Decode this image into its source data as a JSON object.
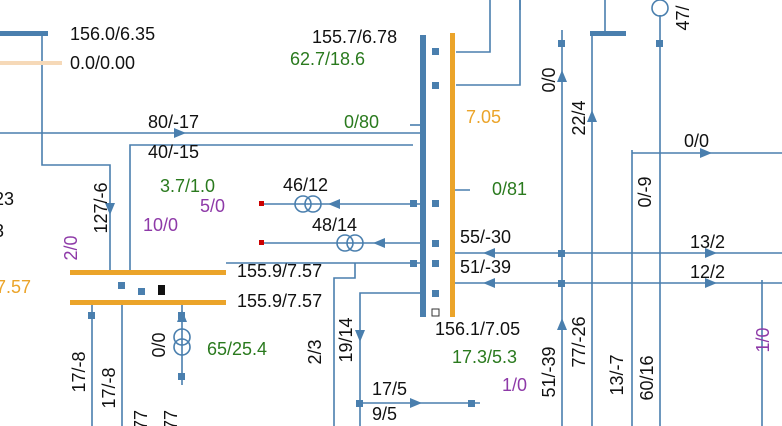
{
  "labels": [
    "156.0/6.35",
    "0.0/0.00",
    "155.7/6.78",
    "62.7/18.6",
    "80/-17",
    "0/80",
    "7.05",
    "40/-15",
    "3.7/1.0",
    "46/12",
    "5/0",
    "48/14",
    "0/81",
    "127/-6",
    "10/0",
    "2/0",
    "7.57",
    "155.9/7.57",
    "155.9/7.57",
    "0/0",
    "65/25.4",
    "55/-30",
    "51/-39",
    "156.1/7.05",
    "17.3/5.3",
    "1/0",
    "2/3",
    "19/14",
    "17/5",
    "9/5",
    "17/-8",
    "17/-8",
    "77",
    "77",
    "0/0",
    "22/4",
    "0/0",
    "0/-9",
    "13/2",
    "12/2",
    "51/-39",
    "77/-26",
    "13/-7",
    "60/16",
    "1/0",
    "47/",
    "23",
    "3"
  ]
}
